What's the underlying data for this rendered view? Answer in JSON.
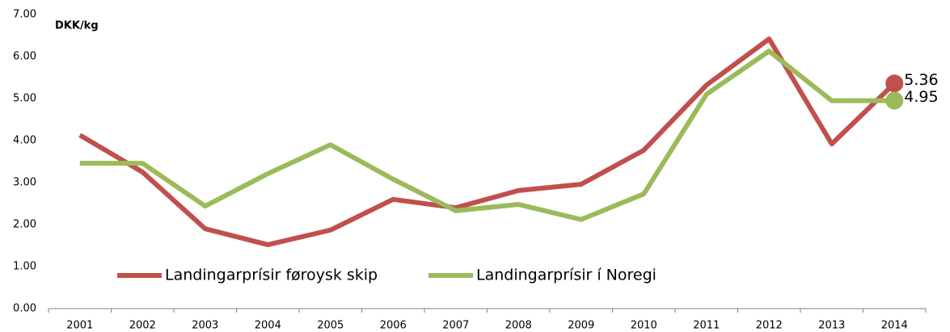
{
  "chart_data": {
    "type": "line",
    "y_label": "DKK/kg",
    "categories": [
      "2001",
      "2002",
      "2003",
      "2004",
      "2005",
      "2006",
      "2007",
      "2008",
      "2009",
      "2010",
      "2011",
      "2012",
      "2013",
      "2014"
    ],
    "series": [
      {
        "name": "Landingarprísir føroysk skip",
        "color": "#c0504d",
        "values": [
          4.13,
          3.25,
          1.9,
          1.52,
          1.87,
          2.6,
          2.4,
          2.81,
          2.96,
          3.77,
          5.32,
          6.42,
          3.92,
          5.36
        ]
      },
      {
        "name": "Landingarprísir í Noregi",
        "color": "#9bbb59",
        "values": [
          3.46,
          3.46,
          2.44,
          3.21,
          3.9,
          3.08,
          2.33,
          2.48,
          2.12,
          2.73,
          5.1,
          6.13,
          4.95,
          4.95
        ]
      }
    ],
    "ylim": [
      0,
      7
    ],
    "yticks": [
      {
        "value": 0,
        "label": "0.00"
      },
      {
        "value": 1,
        "label": "1.00"
      },
      {
        "value": 2,
        "label": "2.00"
      },
      {
        "value": 3,
        "label": "3.00"
      },
      {
        "value": 4,
        "label": "4.00"
      },
      {
        "value": 5,
        "label": "5.00"
      },
      {
        "value": 6,
        "label": "6.00"
      },
      {
        "value": 7,
        "label": "7.00"
      }
    ],
    "grid": false,
    "legend": "bottom-left"
  }
}
